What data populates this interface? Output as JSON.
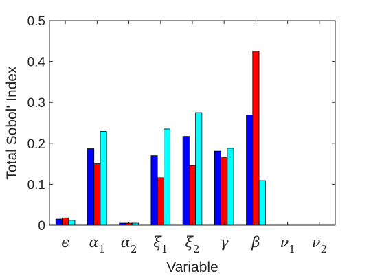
{
  "chart_data": {
    "type": "bar",
    "categories": [
      {
        "base": "ϵ",
        "sub": ""
      },
      {
        "base": "α",
        "sub": "1"
      },
      {
        "base": "α",
        "sub": "2"
      },
      {
        "base": "ξ",
        "sub": "1"
      },
      {
        "base": "ξ",
        "sub": "2"
      },
      {
        "base": "γ",
        "sub": ""
      },
      {
        "base": "β",
        "sub": ""
      },
      {
        "base": "ν",
        "sub": "1"
      },
      {
        "base": "ν",
        "sub": "2"
      }
    ],
    "series": [
      {
        "color": "#0000ff",
        "values": [
          0.015,
          0.187,
          0.005,
          0.17,
          0.217,
          0.181,
          0.269,
          0,
          0
        ]
      },
      {
        "color": "#ff0000",
        "values": [
          0.018,
          0.15,
          0.005,
          0.116,
          0.145,
          0.165,
          0.425,
          0,
          0
        ]
      },
      {
        "color": "#00ffff",
        "values": [
          0.012,
          0.229,
          0.005,
          0.235,
          0.275,
          0.188,
          0.109,
          0,
          0
        ]
      }
    ],
    "xlabel": "Variable",
    "ylabel": "Total Sobol' Index",
    "ylim": [
      0,
      0.5
    ],
    "yticks": [
      "0",
      "0.1",
      "0.2",
      "0.3",
      "0.4",
      "0.5"
    ],
    "grid": false,
    "legend": "none"
  }
}
